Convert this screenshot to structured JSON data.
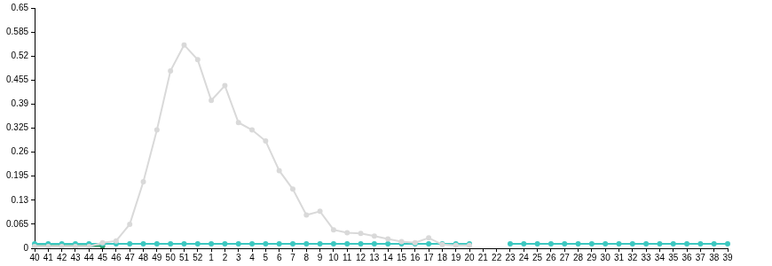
{
  "chart_data": {
    "type": "line",
    "categories": [
      "40",
      "41",
      "42",
      "43",
      "44",
      "45",
      "46",
      "47",
      "48",
      "49",
      "50",
      "51",
      "52",
      "1",
      "2",
      "3",
      "4",
      "5",
      "6",
      "7",
      "8",
      "9",
      "10",
      "11",
      "12",
      "13",
      "14",
      "15",
      "16",
      "17",
      "18",
      "19",
      "20",
      "21",
      "22",
      "23",
      "24",
      "25",
      "26",
      "27",
      "28",
      "29",
      "30",
      "31",
      "32",
      "33",
      "34",
      "35",
      "36",
      "37",
      "38",
      "39"
    ],
    "series": [
      {
        "color": "#d9d9d9",
        "marker": "circle",
        "line_style": "solid",
        "values": [
          0.005,
          0.005,
          0.005,
          0.005,
          0.005,
          0.015,
          0.02,
          0.065,
          0.18,
          0.32,
          0.48,
          0.55,
          0.51,
          0.4,
          0.44,
          0.34,
          0.32,
          0.29,
          0.21,
          0.16,
          0.09,
          0.1,
          0.05,
          0.042,
          0.04,
          0.033,
          0.025,
          0.018,
          0.015,
          0.028,
          0.01,
          0.008,
          0.008,
          null,
          null,
          null,
          null,
          null,
          null,
          null,
          null,
          null,
          null,
          null,
          null,
          null,
          null,
          null,
          null,
          null,
          null,
          null
        ]
      },
      {
        "color": "#3cc8c0",
        "marker": "circle",
        "line_style": "solid",
        "values": [
          0.012,
          0.012,
          0.012,
          0.012,
          0.012,
          0.012,
          0.012,
          0.012,
          0.012,
          0.012,
          0.012,
          0.012,
          0.012,
          0.012,
          0.012,
          0.012,
          0.012,
          0.012,
          0.012,
          0.012,
          0.012,
          0.012,
          0.012,
          0.012,
          0.012,
          0.012,
          0.012,
          0.012,
          0.012,
          0.012,
          0.012,
          0.012,
          0.012,
          null,
          null,
          0.012,
          0.012,
          0.012,
          0.012,
          0.012,
          0.012,
          0.012,
          0.012,
          0.012,
          0.012,
          0.012,
          0.012,
          0.012,
          0.012,
          0.012,
          0.012,
          0.012
        ]
      },
      {
        "color": "#2a9a6a",
        "marker": "circle",
        "line_style": "solid",
        "values": [
          0.006,
          0.006,
          0.006,
          0.006,
          0.006,
          0.006,
          null,
          null,
          null,
          null,
          null,
          null,
          null,
          null,
          null,
          null,
          null,
          null,
          null,
          null,
          null,
          null,
          null,
          null,
          null,
          null,
          null,
          null,
          null,
          null,
          null,
          null,
          null,
          null,
          null,
          null,
          null,
          null,
          null,
          null,
          null,
          null,
          null,
          null,
          null,
          null,
          null,
          null,
          null,
          null,
          null,
          null
        ]
      }
    ],
    "ylim": [
      0,
      0.65
    ],
    "yticks": [
      0,
      0.065,
      0.13,
      0.195,
      0.26,
      0.325,
      0.39,
      0.455,
      0.52,
      0.585,
      0.65
    ],
    "grid": false
  }
}
